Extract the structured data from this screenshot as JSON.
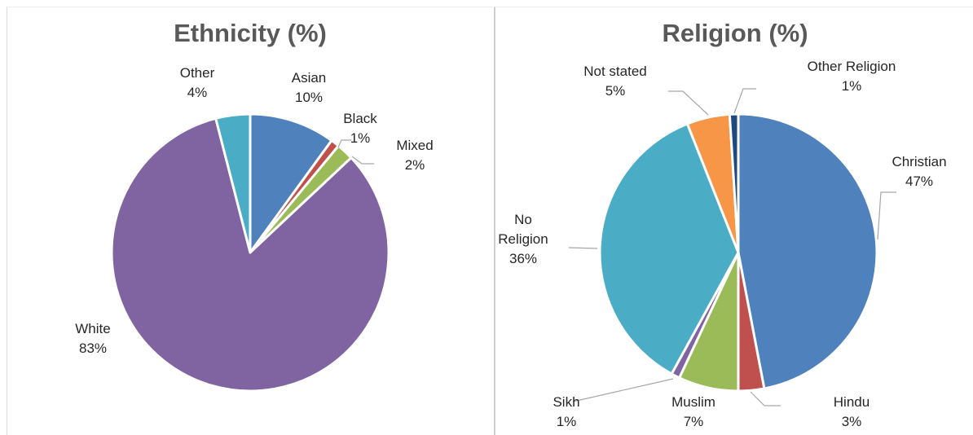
{
  "chart_data": [
    {
      "type": "pie",
      "title": "Ethnicity (%)",
      "slices": [
        {
          "name": "Asian",
          "value": 10,
          "label": "10%",
          "color": "#4f81bd"
        },
        {
          "name": "Black",
          "value": 1,
          "label": "1%",
          "color": "#c0504d"
        },
        {
          "name": "Mixed",
          "value": 2,
          "label": "2%",
          "color": "#9bbb59"
        },
        {
          "name": "White",
          "value": 83,
          "label": "83%",
          "color": "#8064a2"
        },
        {
          "name": "Other",
          "value": 4,
          "label": "4%",
          "color": "#4bacc6"
        }
      ]
    },
    {
      "type": "pie",
      "title": "Religion (%)",
      "slices": [
        {
          "name": "Christian",
          "value": 47,
          "label": "47%",
          "color": "#4f81bd"
        },
        {
          "name": "Hindu",
          "value": 3,
          "label": "3%",
          "color": "#c0504d"
        },
        {
          "name": "Muslim",
          "value": 7,
          "label": "7%",
          "color": "#9bbb59"
        },
        {
          "name": "Sikh",
          "value": 1,
          "label": "1%",
          "color": "#8064a2"
        },
        {
          "name": "No Religion",
          "value": 36,
          "label": "36%",
          "color": "#4bacc6"
        },
        {
          "name": "Not stated",
          "value": 5,
          "label": "5%",
          "color": "#f79646"
        },
        {
          "name": "Other Religion",
          "value": 1,
          "label": "1%",
          "color": "#1f497d"
        }
      ]
    }
  ]
}
